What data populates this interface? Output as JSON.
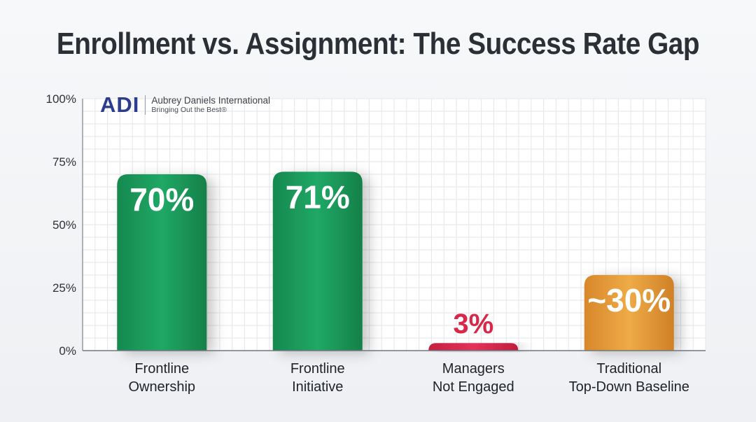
{
  "chart_data": {
    "type": "bar",
    "title": "Enrollment vs. Assignment: The Success Rate Gap",
    "categories": [
      [
        "Frontline",
        "Ownership"
      ],
      [
        "Frontline",
        "Initiative"
      ],
      [
        "Managers",
        "Not Engaged"
      ],
      [
        "Traditional",
        "Top-Down Baseline"
      ]
    ],
    "values": [
      70,
      71,
      3,
      30
    ],
    "data_labels": [
      "70%",
      "71%",
      "3%",
      "~30%"
    ],
    "colors": [
      "#1a9a5c",
      "#1a9a5c",
      "#d8284a",
      "#e49a35"
    ],
    "ylim": [
      0,
      100
    ],
    "yticks": [
      0,
      25,
      50,
      75,
      100
    ],
    "ytick_labels": [
      "0%",
      "25%",
      "50%",
      "75%",
      "100%"
    ],
    "grid": true
  },
  "logo": {
    "mark": "ADI",
    "name": "Aubrey Daniels International",
    "tagline": "Bringing Out the Best®"
  }
}
